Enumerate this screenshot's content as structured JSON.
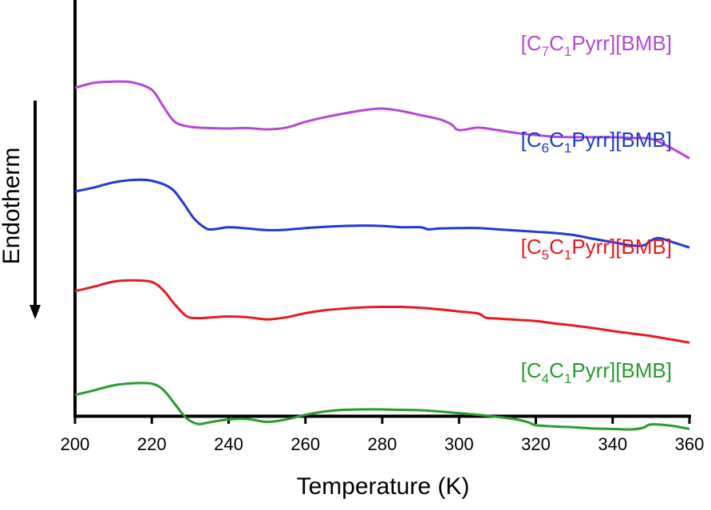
{
  "chart_data": {
    "type": "line",
    "title": "",
    "xlabel": "Temperature (K)",
    "ylabel": "Endotherm",
    "xlim": [
      200,
      360
    ],
    "xticks": [
      200,
      220,
      240,
      260,
      280,
      300,
      320,
      340,
      360
    ],
    "yticks": [],
    "grid": false,
    "legend": "inline-right",
    "series": [
      {
        "label": {
          "pre": "[C",
          "s1": "7",
          "mid": "C",
          "s2": "1",
          "post": "Pyrr][BMB]"
        },
        "color": "#b548d6",
        "x": [
          200,
          205,
          210,
          215,
          220,
          223,
          226,
          230,
          235,
          240,
          245,
          250,
          255,
          260,
          265,
          270,
          275,
          280,
          285,
          290,
          295,
          298,
          300,
          305,
          310,
          315,
          320,
          325,
          330,
          335,
          340,
          345,
          350,
          355,
          360
        ],
        "y": [
          75,
          76.2,
          76.5,
          76.3,
          74.5,
          70.5,
          66.8,
          65.6,
          65.3,
          65.2,
          65.3,
          65.0,
          65.4,
          66.8,
          67.9,
          68.8,
          69.6,
          70.0,
          69.4,
          68.4,
          67.4,
          66.2,
          64.8,
          65.4,
          64.8,
          64.1,
          63.6,
          63.2,
          63.1,
          63.1,
          63.1,
          62.9,
          62.7,
          60.6,
          58.0
        ]
      },
      {
        "label": {
          "pre": "[C",
          "s1": "6",
          "mid": "C",
          "s2": "1",
          "post": "Pyrr][BMB]"
        },
        "color": "#1f39d9",
        "x": [
          200,
          205,
          210,
          215,
          220,
          225,
          228,
          231,
          234,
          236,
          240,
          245,
          250,
          255,
          260,
          265,
          270,
          275,
          280,
          285,
          290,
          292,
          295,
          300,
          305,
          310,
          315,
          320,
          325,
          330,
          335,
          340,
          345,
          348,
          350,
          352,
          355,
          360
        ],
        "y": [
          50,
          51.0,
          52.2,
          52.8,
          52.6,
          50.8,
          47.5,
          43.5,
          41.2,
          40.9,
          41.4,
          41.1,
          40.7,
          40.8,
          41.2,
          41.5,
          41.7,
          41.8,
          41.7,
          41.4,
          41.4,
          40.9,
          41.1,
          41.2,
          41.2,
          40.9,
          40.6,
          40.3,
          40.0,
          39.5,
          38.6,
          37.8,
          37.0,
          37.0,
          38.2,
          38.8,
          38.0,
          36.5
        ]
      },
      {
        "label": {
          "pre": "[C",
          "s1": "5",
          "mid": "C",
          "s2": "1",
          "post": "Pyrr][BMB]"
        },
        "color": "#e8191f",
        "x": [
          200,
          205,
          210,
          215,
          220,
          223,
          226,
          229,
          232,
          236,
          240,
          245,
          250,
          255,
          260,
          265,
          270,
          275,
          280,
          285,
          290,
          295,
          300,
          305,
          307,
          310,
          315,
          320,
          325,
          330,
          335,
          340,
          345,
          350,
          355,
          360
        ],
        "y": [
          26,
          27.1,
          28.3,
          28.6,
          28.2,
          26.2,
          22.8,
          20.0,
          19.5,
          19.7,
          19.9,
          19.7,
          19.2,
          19.7,
          20.7,
          21.4,
          21.8,
          22.1,
          22.2,
          22.2,
          22.0,
          21.6,
          21.1,
          20.6,
          19.6,
          19.4,
          19.1,
          18.8,
          18.2,
          17.7,
          17.1,
          16.4,
          15.8,
          15.2,
          14.4,
          13.6
        ]
      },
      {
        "label": {
          "pre": "[C",
          "s1": "4",
          "mid": "C",
          "s2": "1",
          "post": "Pyrr][BMB]"
        },
        "color": "#2a9a2f",
        "x": [
          200,
          205,
          210,
          215,
          220,
          223,
          226,
          229,
          232,
          235,
          240,
          245,
          250,
          255,
          260,
          265,
          270,
          275,
          280,
          285,
          290,
          295,
          300,
          305,
          310,
          315,
          318,
          320,
          325,
          330,
          335,
          340,
          345,
          348,
          350,
          355,
          360
        ],
        "y": [
          1,
          2.1,
          3.3,
          3.8,
          3.7,
          2.2,
          -1.2,
          -4.6,
          -6.0,
          -5.6,
          -4.9,
          -4.8,
          -5.5,
          -4.9,
          -3.8,
          -3.0,
          -2.6,
          -2.5,
          -2.5,
          -2.6,
          -2.7,
          -3.0,
          -3.4,
          -3.8,
          -4.3,
          -4.9,
          -5.6,
          -6.3,
          -6.6,
          -6.8,
          -7.1,
          -7.2,
          -7.3,
          -6.9,
          -6.1,
          -6.4,
          -7.2
        ]
      }
    ]
  }
}
